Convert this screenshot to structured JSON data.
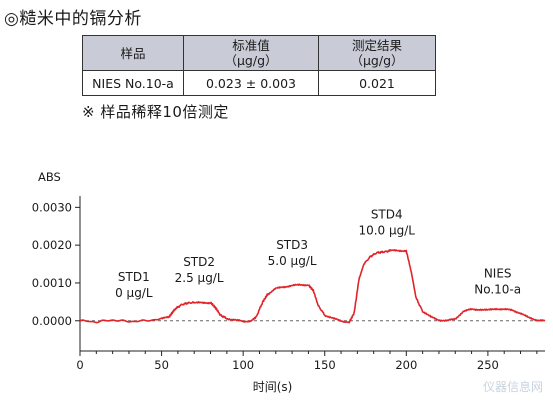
{
  "header": {
    "title": "◎糙米中的镉分析"
  },
  "table": {
    "headers": [
      [
        "样品"
      ],
      [
        "标准值",
        "（μg/g）"
      ],
      [
        "测定结果",
        "（μg/g）"
      ]
    ],
    "rows": [
      [
        "NIES No.10-a",
        "0.023 ± 0.003",
        "0.021"
      ]
    ]
  },
  "note": "※ 样品稀释10倍测定",
  "watermark": "仪器信息网",
  "chart_data": {
    "type": "line",
    "xlabel": "时间(s)",
    "ylabel": "ABS",
    "xlim": [
      0,
      285
    ],
    "ylim": [
      -0.0008,
      0.0033
    ],
    "xticks": [
      0,
      50,
      100,
      150,
      200,
      250
    ],
    "yticks": [
      0.0,
      0.001,
      0.002,
      0.003
    ],
    "ytick_labels": [
      "0.0000",
      "0.0010",
      "0.0020",
      "0.0030"
    ],
    "baseline": 0.0,
    "series": [
      {
        "color": "#e0242a",
        "x": [
          0,
          10,
          20,
          30,
          40,
          50,
          55,
          58,
          62,
          66,
          70,
          75,
          80,
          83,
          86,
          90,
          95,
          100,
          105,
          108,
          112,
          115,
          120,
          125,
          130,
          135,
          140,
          143,
          146,
          150,
          155,
          160,
          165,
          168,
          171,
          174,
          178,
          182,
          186,
          190,
          195,
          200,
          203,
          206,
          210,
          215,
          220,
          225,
          230,
          235,
          240,
          245,
          250,
          255,
          260,
          265,
          270,
          275,
          280,
          285
        ],
        "y": [
          0.0,
          -3e-05,
          2e-05,
          -2e-05,
          0.0,
          5e-05,
          0.00012,
          0.0003,
          0.00042,
          0.00047,
          0.00048,
          0.00047,
          0.00048,
          0.00035,
          0.00015,
          6e-05,
          2e-05,
          -2e-05,
          0.0,
          0.0001,
          0.0005,
          0.0007,
          0.00085,
          0.0009,
          0.00093,
          0.00095,
          0.00095,
          0.0008,
          0.0004,
          0.00015,
          6e-05,
          0.0,
          -4e-05,
          0.0002,
          0.0011,
          0.0015,
          0.0017,
          0.0018,
          0.00182,
          0.00185,
          0.00186,
          0.00185,
          0.0013,
          0.0006,
          0.00025,
          0.0001,
          2e-05,
          0.0,
          5e-05,
          0.00025,
          0.0003,
          0.0003,
          0.00028,
          0.00032,
          0.0003,
          0.00028,
          0.0002,
          8e-05,
          2e-05,
          0.0
        ]
      }
    ],
    "annotations": [
      {
        "lines": [
          "STD1",
          "0 μg/L"
        ],
        "x": 33,
        "y": 0.00105
      },
      {
        "lines": [
          "STD2",
          "2.5 μg/L"
        ],
        "x": 73,
        "y": 0.00145
      },
      {
        "lines": [
          "STD3",
          "5.0 μg/L"
        ],
        "x": 130,
        "y": 0.0019
      },
      {
        "lines": [
          "STD4",
          "10.0 μg/L"
        ],
        "x": 188,
        "y": 0.0027
      },
      {
        "lines": [
          "NIES",
          "No.10-a"
        ],
        "x": 256,
        "y": 0.00114
      }
    ]
  }
}
